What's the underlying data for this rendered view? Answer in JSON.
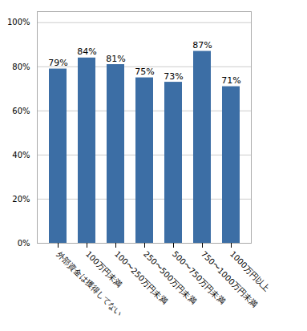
{
  "chart_data": {
    "type": "bar",
    "categories": [
      "外部資金は獲得してない",
      "100万円未満",
      "100〜250万円未満",
      "250〜500万円未満",
      "500〜750万円未満",
      "750〜1000万円未満",
      "1000万円以上"
    ],
    "values": [
      79,
      84,
      81,
      75,
      73,
      87,
      71
    ],
    "value_labels": [
      "79%",
      "84%",
      "81%",
      "75%",
      "73%",
      "87%",
      "71%"
    ],
    "data_labels": true,
    "color": "#3C6EA5",
    "ylim": [
      0,
      105
    ],
    "yticks": [
      {
        "value": 0,
        "label": "0%"
      },
      {
        "value": 20,
        "label": "20%"
      },
      {
        "value": 40,
        "label": "40%"
      },
      {
        "value": 60,
        "label": "60%"
      },
      {
        "value": 80,
        "label": "80%"
      },
      {
        "value": 100,
        "label": "100%"
      }
    ],
    "grid": true
  }
}
